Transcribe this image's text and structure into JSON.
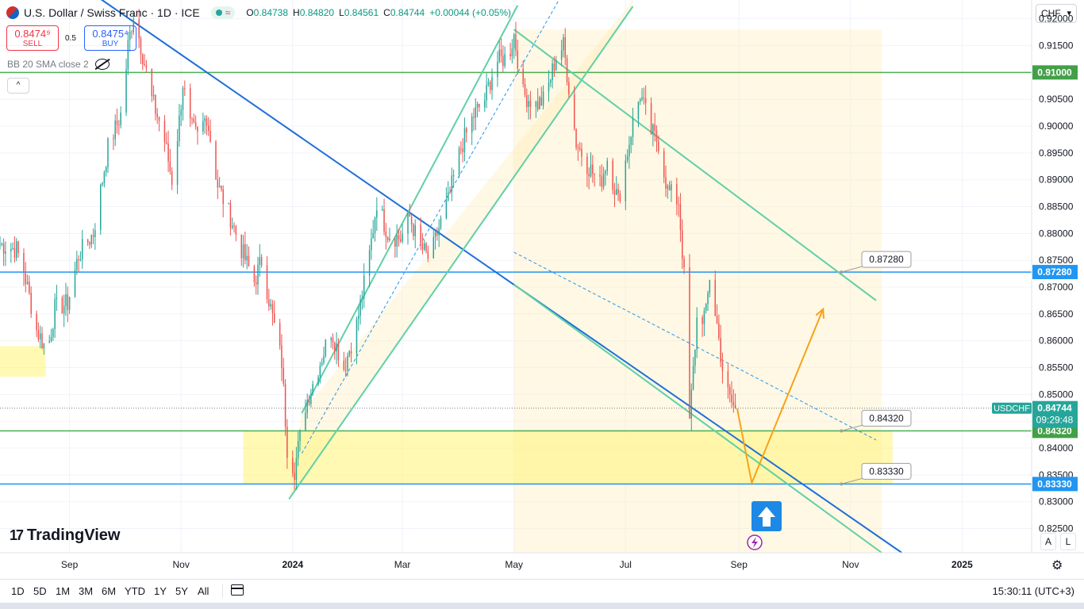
{
  "header": {
    "title": "U.S. Dollar / Swiss Franc · 1D · ICE",
    "ohlc": [
      {
        "label": "O",
        "value": "0.84738"
      },
      {
        "label": "H",
        "value": "0.84820"
      },
      {
        "label": "L",
        "value": "0.84561"
      },
      {
        "label": "C",
        "value": "0.84744"
      }
    ],
    "change": "+0.00044 (+0.05%)",
    "sell_price": "0.8474⁹",
    "sell_label": "SELL",
    "spread": "0.5",
    "buy_price": "0.8475⁴",
    "buy_label": "BUY",
    "indicator": "BB 20 SMA close 2",
    "collapse_glyph": "^",
    "currency": "CHF",
    "logo_text": "TradingView",
    "logo_mark": "17"
  },
  "toolbar": {
    "timeframes": [
      "1D",
      "5D",
      "1M",
      "3M",
      "6M",
      "YTD",
      "1Y",
      "5Y",
      "All"
    ],
    "clock": "15:30:11 (UTC+3)",
    "scale_auto": "A",
    "scale_log": "L"
  },
  "colors": {
    "up": "#26a69a",
    "down": "#ef5350",
    "resistance_green": "#4caf50",
    "blue_line": "#1e6fd9",
    "channel": "#5fd0a6",
    "yellow_zone": "#fff59d",
    "forecast": "#f7a21b",
    "current_tag": "#26a69a",
    "price_tag_blue": "#2196f3",
    "price_tag_green": "#43a047"
  },
  "chart_data": {
    "type": "candlestick",
    "symbol": "USDCHF",
    "x_tick_labels": [
      "Sep",
      "Nov",
      "2024",
      "Mar",
      "May",
      "Jul",
      "Sep",
      "Nov",
      "2025"
    ],
    "y_tick_labels": [
      "0.92000",
      "0.91500",
      "0.91000",
      "0.90500",
      "0.90000",
      "0.89500",
      "0.89000",
      "0.88500",
      "0.88000",
      "0.87500",
      "0.87000",
      "0.86500",
      "0.86000",
      "0.85500",
      "0.85000",
      "0.84500",
      "0.84000",
      "0.83500",
      "0.83000",
      "0.82500"
    ],
    "ylim": [
      0.8205,
      0.9235
    ],
    "y_ticks": [
      0.92,
      0.915,
      0.91,
      0.905,
      0.9,
      0.895,
      0.89,
      0.885,
      0.88,
      0.875,
      0.87,
      0.865,
      0.86,
      0.855,
      0.85,
      0.845,
      0.84,
      0.835,
      0.83,
      0.825
    ],
    "x_tick_dates": [
      "2023-09-01",
      "2023-11-01",
      "2024-01-01",
      "2024-03-01",
      "2024-05-01",
      "2024-07-01",
      "2024-09-01",
      "2024-11-01",
      "2025-01-01"
    ],
    "time_range": [
      "2023-07-25",
      "2025-02-08"
    ],
    "current_price": "0.84744",
    "current_price_value": 0.84744,
    "countdown": "09:29:48",
    "current_label": "USDCHF",
    "levels": [
      {
        "value": 0.91,
        "label": "0.91000",
        "color": "#4caf50",
        "tag_color": "#43a047"
      },
      {
        "value": 0.8728,
        "label": "0.87280",
        "color": "#2196f3",
        "tag_color": "#2196f3",
        "callout": "0.87280"
      },
      {
        "value": 0.8432,
        "label": "0.84320",
        "color": "#4caf50",
        "tag_color": "#43a047",
        "callout": "0.84320"
      },
      {
        "value": 0.8333,
        "label": "0.83330",
        "color": "#2196f3",
        "tag_color": "#2196f3",
        "callout": "0.83330"
      }
    ],
    "anchors": [
      [
        "2023-07-25",
        0.878
      ],
      [
        "2023-08-03",
        0.877
      ],
      [
        "2023-08-07",
        0.873
      ],
      [
        "2023-08-14",
        0.862
      ],
      [
        "2023-08-20",
        0.858
      ],
      [
        "2023-08-24",
        0.866
      ],
      [
        "2023-08-31",
        0.867
      ],
      [
        "2023-09-06",
        0.876
      ],
      [
        "2023-09-14",
        0.88
      ],
      [
        "2023-09-22",
        0.896
      ],
      [
        "2023-09-30",
        0.903
      ],
      [
        "2023-10-03",
        0.915
      ],
      [
        "2023-10-06",
        0.921
      ],
      [
        "2023-10-10",
        0.915
      ],
      [
        "2023-10-16",
        0.905
      ],
      [
        "2023-10-22",
        0.899
      ],
      [
        "2023-10-27",
        0.89
      ],
      [
        "2023-10-31",
        0.901
      ],
      [
        "2023-11-02",
        0.908
      ],
      [
        "2023-11-06",
        0.9
      ],
      [
        "2023-11-10",
        0.898
      ],
      [
        "2023-11-15",
        0.902
      ],
      [
        "2023-11-21",
        0.889
      ],
      [
        "2023-11-28",
        0.883
      ],
      [
        "2023-12-05",
        0.876
      ],
      [
        "2023-12-11",
        0.871
      ],
      [
        "2023-12-15",
        0.875
      ],
      [
        "2023-12-20",
        0.866
      ],
      [
        "2023-12-26",
        0.856
      ],
      [
        "2023-12-29",
        0.84
      ],
      [
        "2024-01-02",
        0.836
      ],
      [
        "2024-01-08",
        0.848
      ],
      [
        "2024-01-15",
        0.855
      ],
      [
        "2024-01-22",
        0.862
      ],
      [
        "2024-01-29",
        0.855
      ],
      [
        "2024-02-05",
        0.863
      ],
      [
        "2024-02-12",
        0.876
      ],
      [
        "2024-02-16",
        0.886
      ],
      [
        "2024-02-22",
        0.88
      ],
      [
        "2024-02-29",
        0.879
      ],
      [
        "2024-03-05",
        0.883
      ],
      [
        "2024-03-10",
        0.878
      ],
      [
        "2024-03-16",
        0.875
      ],
      [
        "2024-03-20",
        0.88
      ],
      [
        "2024-03-26",
        0.886
      ],
      [
        "2024-04-02",
        0.896
      ],
      [
        "2024-04-09",
        0.902
      ],
      [
        "2024-04-15",
        0.905
      ],
      [
        "2024-04-21",
        0.912
      ],
      [
        "2024-04-28",
        0.913
      ],
      [
        "2024-05-01",
        0.917
      ],
      [
        "2024-05-06",
        0.906
      ],
      [
        "2024-05-13",
        0.904
      ],
      [
        "2024-05-18",
        0.905
      ],
      [
        "2024-05-24",
        0.913
      ],
      [
        "2024-05-28",
        0.915
      ],
      [
        "2024-06-04",
        0.897
      ],
      [
        "2024-06-10",
        0.893
      ],
      [
        "2024-06-17",
        0.889
      ],
      [
        "2024-06-21",
        0.894
      ],
      [
        "2024-06-27",
        0.886
      ],
      [
        "2024-07-04",
        0.899
      ],
      [
        "2024-07-09",
        0.906
      ],
      [
        "2024-07-15",
        0.899
      ],
      [
        "2024-07-19",
        0.897
      ],
      [
        "2024-07-24",
        0.888
      ],
      [
        "2024-07-30",
        0.886
      ],
      [
        "2024-08-02",
        0.872
      ],
      [
        "2024-08-05",
        0.845
      ],
      [
        "2024-08-09",
        0.864
      ],
      [
        "2024-08-14",
        0.865
      ],
      [
        "2024-08-16",
        0.872
      ],
      [
        "2024-08-20",
        0.863
      ],
      [
        "2024-08-24",
        0.852
      ],
      [
        "2024-08-27",
        0.849
      ],
      [
        "2024-08-30",
        0.8474
      ]
    ],
    "forecast_path": [
      [
        "2024-08-31",
        0.8474
      ],
      [
        "2024-09-08",
        0.8335
      ],
      [
        "2024-10-17",
        0.8659
      ]
    ],
    "drawings": {
      "descending_blue": [
        [
          "2023-08-01",
          0.935
        ],
        [
          "2024-11-29",
          0.8205
        ]
      ],
      "rising_channel_upper": [
        [
          "2024-01-06",
          0.8465
        ],
        [
          "2024-05-03",
          0.9225
        ]
      ],
      "rising_channel_lower": [
        [
          "2023-12-30",
          0.8305
        ],
        [
          "2024-07-05",
          0.9223
        ]
      ],
      "rising_channel_mid": [
        [
          "2024-01-06",
          0.839
        ],
        [
          "2024-06-12",
          0.934
        ]
      ],
      "falling_channel_upper": [
        [
          "2024-05-01",
          0.918
        ],
        [
          "2024-11-15",
          0.8675
        ]
      ],
      "falling_channel_lower": [
        [
          "2024-05-01",
          0.8705
        ],
        [
          "2024-11-18",
          0.8205
        ]
      ],
      "falling_channel_mid": [
        [
          "2024-05-01",
          0.8765
        ],
        [
          "2024-11-15",
          0.8415
        ]
      ],
      "zones": [
        {
          "from": "2023-07-25",
          "to": "2023-08-19",
          "top": 0.859,
          "bottom": 0.8533
        },
        {
          "from": "2023-12-05",
          "to": "2024-11-24",
          "top": 0.8432,
          "bottom": 0.8333
        }
      ],
      "shaded_channels": [
        {
          "from": "2023-12-30",
          "to": "2024-07-05"
        },
        {
          "from": "2024-05-01",
          "to": "2024-11-18"
        }
      ]
    }
  }
}
